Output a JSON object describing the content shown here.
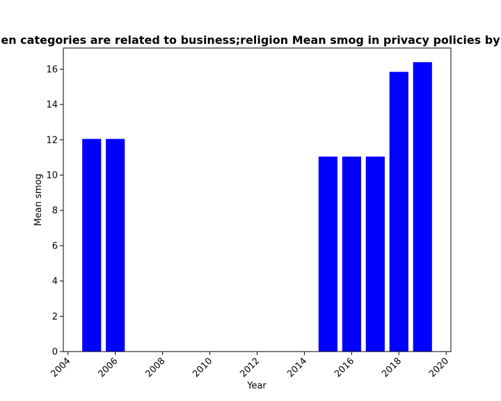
{
  "chart_data": {
    "type": "bar",
    "title": "en categories are related to business;religion Mean smog in privacy policies by",
    "xlabel": "Year",
    "ylabel": "Mean smog",
    "x": [
      2005,
      2006,
      2015,
      2016,
      2017,
      2018,
      2019
    ],
    "values": [
      12.05,
      12.05,
      11.05,
      11.05,
      11.05,
      15.85,
      16.4
    ],
    "xlim": [
      2003.8,
      2020.2
    ],
    "ylim": [
      0,
      17.2
    ],
    "xticks": [
      2004,
      2006,
      2008,
      2010,
      2012,
      2014,
      2016,
      2018,
      2020
    ],
    "yticks": [
      0,
      2,
      4,
      6,
      8,
      10,
      12,
      14,
      16
    ],
    "bar_color": "#0000ff",
    "grid": false
  }
}
